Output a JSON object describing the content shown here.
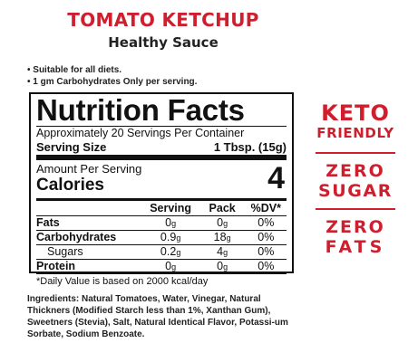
{
  "header": {
    "title": "TOMATO KETCHUP",
    "subtitle": "Healthy Sauce"
  },
  "bullets": [
    "• Suitable for all diets.",
    "• 1 gm Carbohydrates Only per serving."
  ],
  "facts": {
    "title": "Nutrition Facts",
    "servings_per_container": "Approximately 20 Servings Per Container",
    "serving_size_label": "Serving Size",
    "serving_size_value": "1 Tbsp. (15g)",
    "amount_per_serving": "Amount Per Serving",
    "calories_label": "Calories",
    "calories_value": "4",
    "columns": [
      "Serving",
      "Pack",
      "%DV*"
    ],
    "rows": [
      {
        "label": "Fats",
        "serving": "0",
        "serving_unit": "g",
        "pack": "0",
        "pack_unit": "g",
        "dv": "0%"
      },
      {
        "label": "Carbohydrates",
        "serving": "0.9",
        "serving_unit": "g",
        "pack": "18",
        "pack_unit": "g",
        "dv": "0%"
      },
      {
        "label": "Sugars",
        "serving": "0.2",
        "serving_unit": "g",
        "pack": "4",
        "pack_unit": "g",
        "dv": "0%"
      },
      {
        "label": "Protein",
        "serving": "0",
        "serving_unit": "g",
        "pack": "0",
        "pack_unit": "g",
        "dv": "0%"
      }
    ],
    "footnote": "*Daily Value is based on 2000 kcal/day"
  },
  "ingredients": "Ingredients: Natural Tomatoes, Water, Vinegar, Natural Thickners (Modified Starch less than 1%, Xanthan Gum), Sweetners (Stevia), Salt, Natural Identical Flavor, Potassi-um Sorbate, Sodium Benzoate.",
  "badges": {
    "keto": {
      "line1": "KETO",
      "line2": "FRIENDLY"
    },
    "zero_sugar": {
      "line1": "ZERO",
      "line2": "SUGAR"
    },
    "zero_fats": {
      "line1": "ZERO",
      "line2": "FATS"
    }
  },
  "colors": {
    "brand_red": "#cf1f2e",
    "text": "#111111"
  }
}
